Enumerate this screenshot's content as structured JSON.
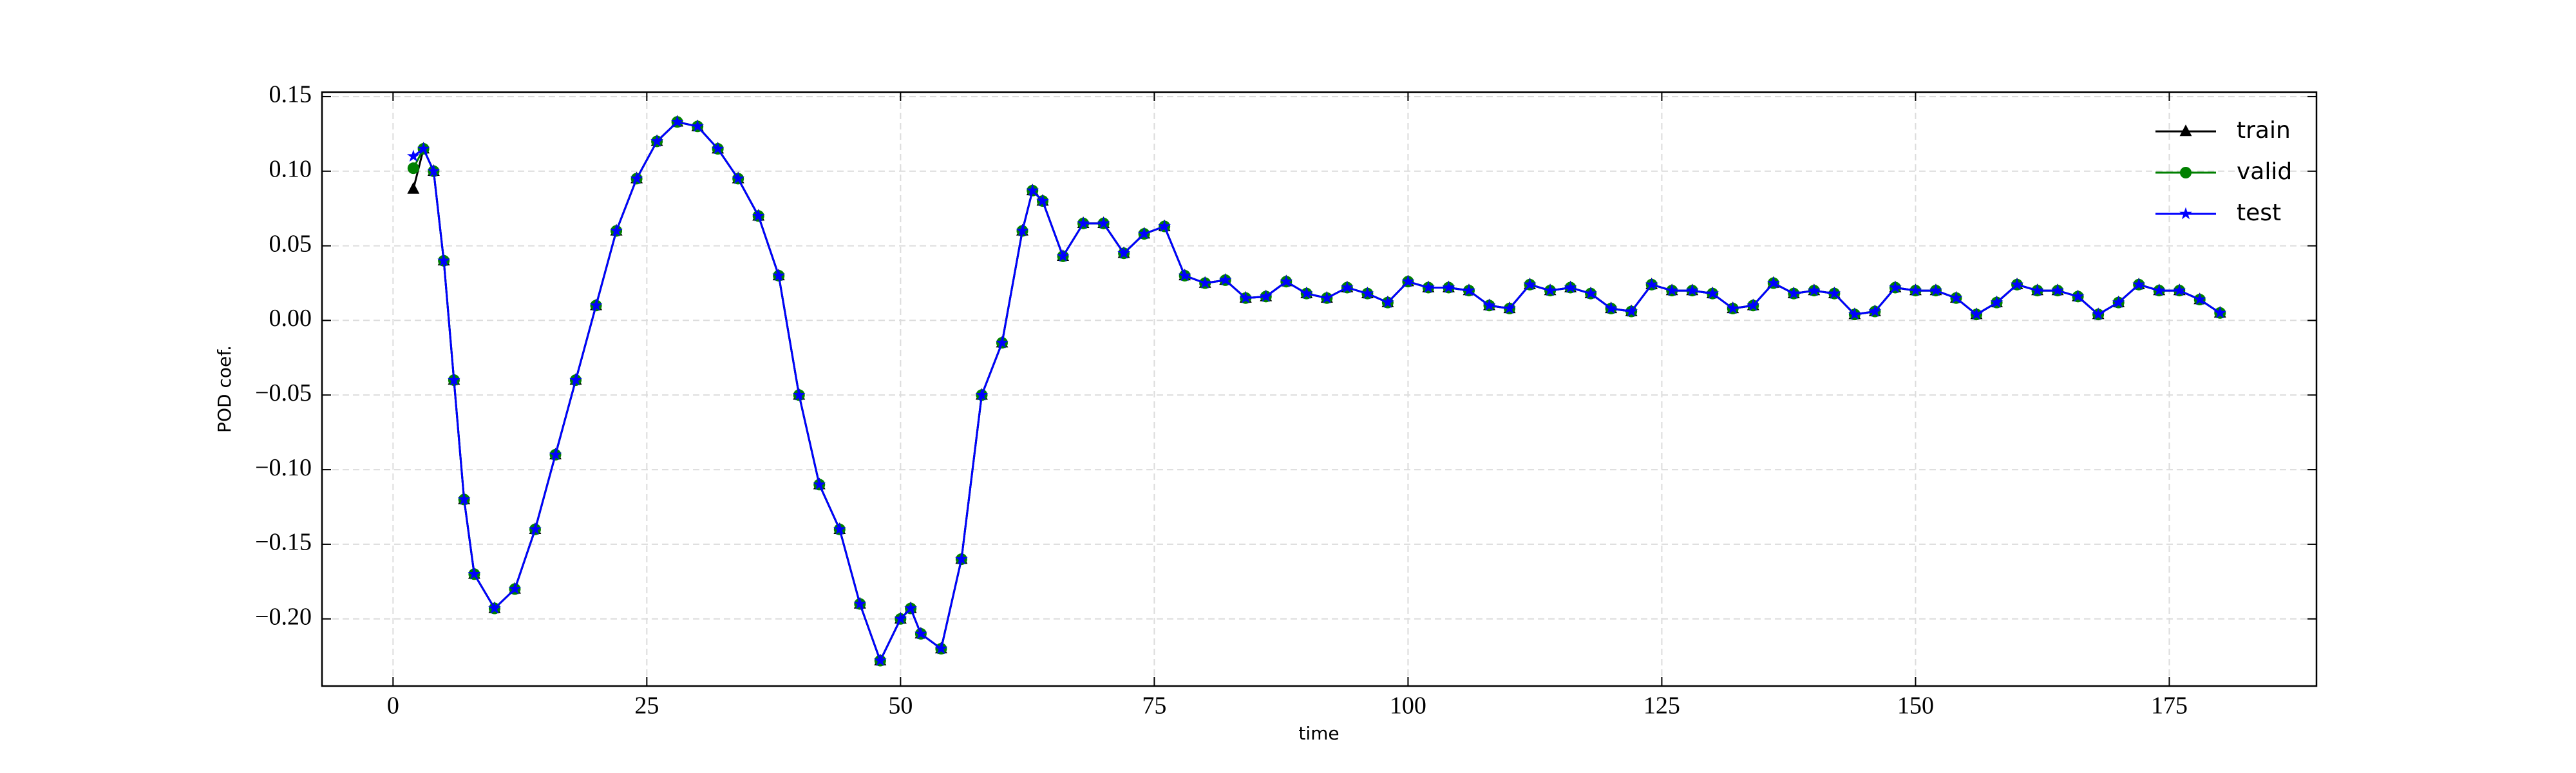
{
  "chart_data": {
    "type": "line",
    "xlabel": "time",
    "ylabel": "POD coef.",
    "x": [
      2,
      3,
      4,
      5,
      6,
      7,
      8,
      10,
      12,
      14,
      16,
      18,
      20,
      22,
      24,
      26,
      28,
      30,
      32,
      34,
      36,
      38,
      40,
      42,
      44,
      46,
      48,
      50,
      51,
      52,
      54,
      56,
      58,
      60,
      62,
      63,
      64,
      66,
      68,
      70,
      72,
      74,
      76,
      78,
      80,
      82,
      84,
      86,
      88,
      90,
      92,
      94,
      96,
      98,
      100,
      102,
      104,
      106,
      108,
      110,
      112,
      114,
      116,
      118,
      120,
      122,
      124,
      126,
      128,
      130,
      132,
      134,
      136,
      138,
      140,
      142,
      144,
      146,
      148,
      150,
      152,
      154,
      156,
      158,
      160,
      162,
      164,
      166,
      168,
      170,
      172,
      174,
      176,
      178,
      180
    ],
    "series": [
      {
        "name": "train",
        "color": "#000000",
        "marker": "triangle",
        "values": [
          0.088,
          0.115,
          0.1,
          0.04,
          -0.04,
          -0.12,
          -0.17,
          -0.193,
          -0.18,
          -0.14,
          -0.09,
          -0.04,
          0.01,
          0.06,
          0.095,
          0.12,
          0.133,
          0.13,
          0.115,
          0.095,
          0.07,
          0.03,
          -0.05,
          -0.11,
          -0.14,
          -0.19,
          -0.228,
          -0.2,
          -0.193,
          -0.21,
          -0.22,
          -0.16,
          -0.05,
          -0.015,
          0.06,
          0.087,
          0.08,
          0.043,
          0.065,
          0.065,
          0.045,
          0.058,
          0.063,
          0.03,
          0.025,
          0.027,
          0.015,
          0.016,
          0.026,
          0.018,
          0.015,
          0.022,
          0.018,
          0.012,
          0.026,
          0.022,
          0.022,
          0.02,
          0.01,
          0.008,
          0.024,
          0.02,
          0.022,
          0.018,
          0.008,
          0.006,
          0.024,
          0.02,
          0.02,
          0.018,
          0.008,
          0.01,
          0.025,
          0.018,
          0.02,
          0.018,
          0.004,
          0.006,
          0.022,
          0.02,
          0.02,
          0.015,
          0.004,
          0.012,
          0.024,
          0.02,
          0.02,
          0.016,
          0.004,
          0.012,
          0.024,
          0.02,
          0.02,
          0.014,
          0.005
        ]
      },
      {
        "name": "valid",
        "color": "#008000",
        "marker": "circle",
        "values": [
          0.102,
          0.115,
          0.1,
          0.04,
          -0.04,
          -0.12,
          -0.17,
          -0.193,
          -0.18,
          -0.14,
          -0.09,
          -0.04,
          0.01,
          0.06,
          0.095,
          0.12,
          0.133,
          0.13,
          0.115,
          0.095,
          0.07,
          0.03,
          -0.05,
          -0.11,
          -0.14,
          -0.19,
          -0.228,
          -0.2,
          -0.193,
          -0.21,
          -0.22,
          -0.16,
          -0.05,
          -0.015,
          0.06,
          0.087,
          0.08,
          0.043,
          0.065,
          0.065,
          0.045,
          0.058,
          0.063,
          0.03,
          0.025,
          0.027,
          0.015,
          0.016,
          0.026,
          0.018,
          0.015,
          0.022,
          0.018,
          0.012,
          0.026,
          0.022,
          0.022,
          0.02,
          0.01,
          0.008,
          0.024,
          0.02,
          0.022,
          0.018,
          0.008,
          0.006,
          0.024,
          0.02,
          0.02,
          0.018,
          0.008,
          0.01,
          0.025,
          0.018,
          0.02,
          0.018,
          0.004,
          0.006,
          0.022,
          0.02,
          0.02,
          0.015,
          0.004,
          0.012,
          0.024,
          0.02,
          0.02,
          0.016,
          0.004,
          0.012,
          0.024,
          0.02,
          0.02,
          0.014,
          0.005
        ]
      },
      {
        "name": "test",
        "color": "#0000ff",
        "marker": "star",
        "values": [
          0.11,
          0.115,
          0.1,
          0.04,
          -0.04,
          -0.12,
          -0.17,
          -0.193,
          -0.18,
          -0.14,
          -0.09,
          -0.04,
          0.01,
          0.06,
          0.095,
          0.12,
          0.133,
          0.13,
          0.115,
          0.095,
          0.07,
          0.03,
          -0.05,
          -0.11,
          -0.14,
          -0.19,
          -0.228,
          -0.2,
          -0.193,
          -0.21,
          -0.22,
          -0.16,
          -0.05,
          -0.015,
          0.06,
          0.087,
          0.08,
          0.043,
          0.065,
          0.065,
          0.045,
          0.058,
          0.063,
          0.03,
          0.025,
          0.027,
          0.015,
          0.016,
          0.026,
          0.018,
          0.015,
          0.022,
          0.018,
          0.012,
          0.026,
          0.022,
          0.022,
          0.02,
          0.01,
          0.008,
          0.024,
          0.02,
          0.022,
          0.018,
          0.008,
          0.006,
          0.024,
          0.02,
          0.02,
          0.018,
          0.008,
          0.01,
          0.025,
          0.018,
          0.02,
          0.018,
          0.004,
          0.006,
          0.022,
          0.02,
          0.02,
          0.015,
          0.004,
          0.012,
          0.024,
          0.02,
          0.02,
          0.016,
          0.004,
          0.012,
          0.024,
          0.02,
          0.02,
          0.014,
          0.005
        ]
      }
    ],
    "xlim": [
      -7,
      189.5
    ],
    "xticks": [
      0,
      25,
      50,
      75,
      100,
      125,
      150,
      175
    ],
    "ylim": [
      -0.245,
      0.153
    ],
    "yticks": [
      {
        "value": -0.2,
        "label": "−0.20"
      },
      {
        "value": -0.15,
        "label": "−0.15"
      },
      {
        "value": -0.1,
        "label": "−0.10"
      },
      {
        "value": -0.05,
        "label": "−0.05"
      },
      {
        "value": 0,
        "label": "0.00"
      },
      {
        "value": 0.05,
        "label": "0.05"
      },
      {
        "value": 0.1,
        "label": "0.10"
      },
      {
        "value": 0.15,
        "label": "0.15"
      }
    ],
    "grid": true,
    "legend": "upper-right"
  }
}
